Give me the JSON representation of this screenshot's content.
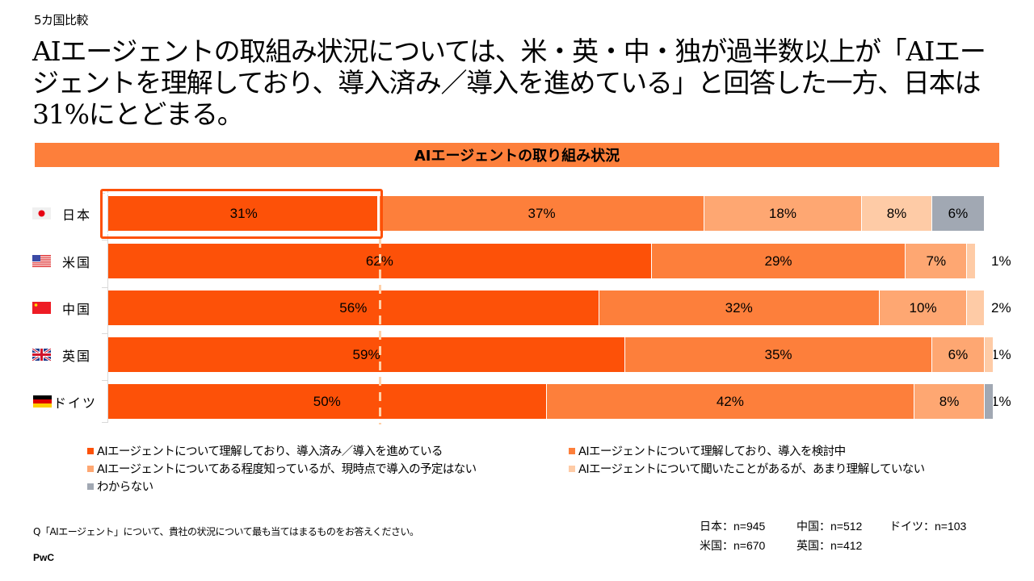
{
  "header": {
    "section_label": "5カ国比較",
    "headline": "AIエージェントの取組み状況については、米・英・中・独が過半数以上が「AIエージェントを理解しており、導入済み／導入を進めている」と回答した一方、日本は31%にとどまる。"
  },
  "chart_data": {
    "type": "bar",
    "orientation": "horizontal",
    "stacked": true,
    "title": "AIエージェントの取り組み状況",
    "xlabel": "",
    "ylabel": "",
    "xlim": [
      0,
      100
    ],
    "unit": "%",
    "categories": [
      "日本",
      "米国",
      "中国",
      "英国",
      "ドイツ"
    ],
    "flags": [
      "japan-flag",
      "usa-flag",
      "china-flag",
      "uk-flag",
      "germany-flag"
    ],
    "series": [
      {
        "name": "AIエージェントについて理解しており、導入済み／導入を進めている",
        "color": "#fd5108",
        "values": [
          31,
          62,
          56,
          59,
          50
        ]
      },
      {
        "name": "AIエージェントについて理解しており、導入を検討中",
        "color": "#fd7f3b",
        "values": [
          37,
          29,
          32,
          35,
          42
        ]
      },
      {
        "name": "AIエージェントについてある程度知っているが、現時点で導入の予定はない",
        "color": "#fea772",
        "values": [
          18,
          7,
          10,
          6,
          8
        ]
      },
      {
        "name": "AIエージェントについて聞いたことがあるが、あまり理解していない",
        "color": "#fecba6",
        "values": [
          8,
          1,
          2,
          1,
          0
        ]
      },
      {
        "name": "わからない",
        "color": "#a1a8b3",
        "values": [
          6,
          0,
          0,
          0,
          1
        ]
      }
    ],
    "data_labels": [
      [
        "31%",
        "37%",
        "18%",
        "8%",
        "6%"
      ],
      [
        "62%",
        "29%",
        "7%",
        "1%",
        ""
      ],
      [
        "56%",
        "32%",
        "10%",
        "2%",
        ""
      ],
      [
        "59%",
        "35%",
        "6%",
        "1%",
        ""
      ],
      [
        "50%",
        "42%",
        "8%",
        "",
        "1%"
      ]
    ],
    "highlight": {
      "category": "日本",
      "series_index": 0,
      "reference_value": 31
    },
    "legend_position": "bottom",
    "grid": false
  },
  "footer": {
    "question": "Q「AIエージェント」について、貴社の状況について最も当てはまるものをお答えください。",
    "brand": "PwC",
    "samples": [
      {
        "label": "日本：n=945"
      },
      {
        "label": "中国：n=512"
      },
      {
        "label": "ドイツ：n=103"
      },
      {
        "label": "米国：n=670"
      },
      {
        "label": "英国：n=412"
      }
    ]
  }
}
